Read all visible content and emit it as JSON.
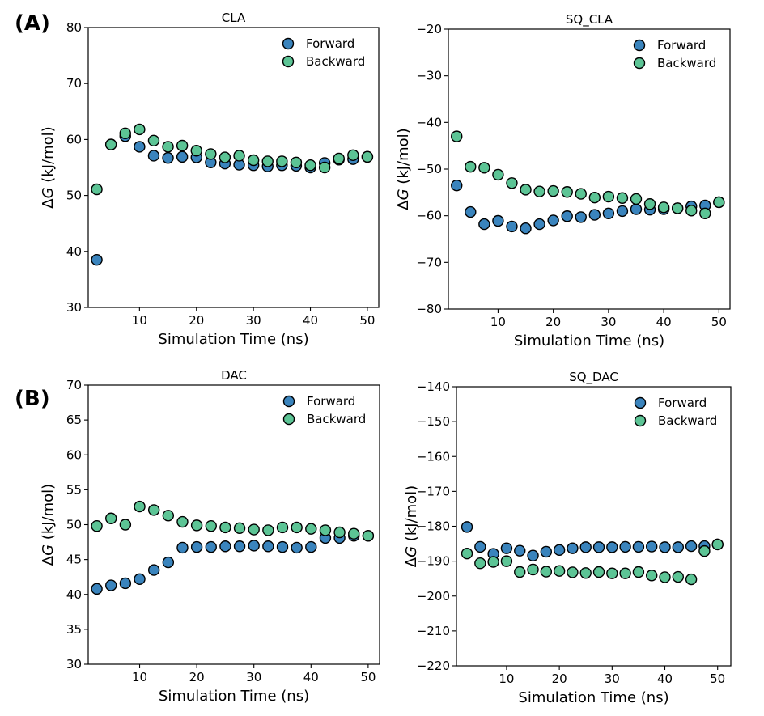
{
  "panel_labels": [
    "(A)",
    "(B)"
  ],
  "colors": {
    "forward": "#3a84bd",
    "backward": "#5cc495",
    "edge": "#000000"
  },
  "chart_data": [
    {
      "type": "scatter",
      "title": "CLA",
      "xlabel": "Simulation Time (ns)",
      "ylabel_prefix": "Δ",
      "ylabel_var": "G",
      "ylabel_suffix": " (kJ/mol)",
      "xlim": [
        1.0,
        52.0
      ],
      "ylim": [
        30,
        80
      ],
      "xticks": [
        10,
        20,
        30,
        40,
        50
      ],
      "yticks": [
        30,
        40,
        50,
        60,
        70,
        80
      ],
      "legend": [
        "Forward",
        "Backward"
      ],
      "series": [
        {
          "name": "Forward",
          "x": [
            2.5,
            5,
            7.5,
            10,
            12.5,
            15,
            17.5,
            20,
            22.5,
            25,
            27.5,
            30,
            32.5,
            35,
            37.5,
            40,
            42.5,
            45,
            47.5,
            50
          ],
          "y": [
            38.5,
            59.1,
            60.6,
            58.7,
            57.1,
            56.7,
            56.9,
            56.8,
            55.9,
            55.7,
            55.5,
            55.4,
            55.2,
            55.4,
            55.3,
            55.0,
            55.8,
            56.4,
            56.5,
            56.9
          ]
        },
        {
          "name": "Backward",
          "x": [
            2.5,
            5,
            7.5,
            10,
            12.5,
            15,
            17.5,
            20,
            22.5,
            25,
            27.5,
            30,
            32.5,
            35,
            37.5,
            40,
            42.5,
            45,
            47.5,
            50
          ],
          "y": [
            51.1,
            59.1,
            61.1,
            61.8,
            59.8,
            58.7,
            58.9,
            58.0,
            57.4,
            56.8,
            57.1,
            56.3,
            56.1,
            56.1,
            55.9,
            55.4,
            55.0,
            56.6,
            57.2,
            56.9
          ]
        }
      ]
    },
    {
      "type": "scatter",
      "title": "SQ_CLA",
      "xlabel": "Simulation Time (ns)",
      "ylabel_prefix": "Δ",
      "ylabel_var": "G",
      "ylabel_suffix": " (kJ/mol)",
      "xlim": [
        1.0,
        52.0
      ],
      "ylim": [
        -80,
        -20
      ],
      "xticks": [
        10,
        20,
        30,
        40,
        50
      ],
      "yticks": [
        -80,
        -70,
        -60,
        -50,
        -40,
        -30,
        -20
      ],
      "legend": [
        "Forward",
        "Backward"
      ],
      "series": [
        {
          "name": "Forward",
          "x": [
            2.5,
            5,
            7.5,
            10,
            12.5,
            15,
            17.5,
            20,
            22.5,
            25,
            27.5,
            30,
            32.5,
            35,
            37.5,
            40,
            42.5,
            45,
            47.5,
            50
          ],
          "y": [
            -53.5,
            -59.2,
            -61.8,
            -61.1,
            -62.3,
            -62.7,
            -61.8,
            -61.0,
            -60.1,
            -60.3,
            -59.8,
            -59.5,
            -59.0,
            -58.6,
            -58.7,
            -58.6,
            -58.4,
            -58.0,
            -57.8,
            -57.1
          ]
        },
        {
          "name": "Backward",
          "x": [
            2.5,
            5,
            7.5,
            10,
            12.5,
            15,
            17.5,
            20,
            22.5,
            25,
            27.5,
            30,
            32.5,
            35,
            37.5,
            40,
            42.5,
            45,
            47.5,
            50
          ],
          "y": [
            -43.0,
            -49.5,
            -49.7,
            -51.2,
            -53.0,
            -54.4,
            -54.8,
            -54.7,
            -54.9,
            -55.3,
            -56.1,
            -55.9,
            -56.2,
            -56.4,
            -57.5,
            -58.2,
            -58.4,
            -58.9,
            -59.5,
            -57.1
          ]
        }
      ]
    },
    {
      "type": "scatter",
      "title": "DAC",
      "xlabel": "Simulation Time (ns)",
      "ylabel_prefix": "Δ",
      "ylabel_var": "G",
      "ylabel_suffix": " (kJ/mol)",
      "xlim": [
        1.0,
        52.0
      ],
      "ylim": [
        30,
        70
      ],
      "xticks": [
        10,
        20,
        30,
        40,
        50
      ],
      "yticks": [
        30,
        35,
        40,
        45,
        50,
        55,
        60,
        65,
        70
      ],
      "legend": [
        "Forward",
        "Backward"
      ],
      "series": [
        {
          "name": "Forward",
          "x": [
            2.5,
            5,
            7.5,
            10,
            12.5,
            15,
            17.5,
            20,
            22.5,
            25,
            27.5,
            30,
            32.5,
            35,
            37.5,
            40,
            42.5,
            45,
            47.5,
            50
          ],
          "y": [
            40.8,
            41.3,
            41.6,
            42.2,
            43.5,
            44.6,
            46.7,
            46.8,
            46.8,
            46.9,
            46.9,
            47.0,
            46.9,
            46.8,
            46.7,
            46.8,
            48.1,
            48.1,
            48.4,
            48.4
          ]
        },
        {
          "name": "Backward",
          "x": [
            2.5,
            5,
            7.5,
            10,
            12.5,
            15,
            17.5,
            20,
            22.5,
            25,
            27.5,
            30,
            32.5,
            35,
            37.5,
            40,
            42.5,
            45,
            47.5,
            50
          ],
          "y": [
            49.8,
            50.9,
            50.0,
            52.6,
            52.1,
            51.3,
            50.4,
            49.9,
            49.8,
            49.6,
            49.5,
            49.3,
            49.2,
            49.6,
            49.6,
            49.4,
            49.2,
            48.9,
            48.7,
            48.4
          ]
        }
      ]
    },
    {
      "type": "scatter",
      "title": "SQ_DAC",
      "xlabel": "Simulation Time (ns)",
      "ylabel_prefix": "Δ",
      "ylabel_var": "G",
      "ylabel_suffix": " (kJ/mol)",
      "xlim": [
        0.5,
        52.5
      ],
      "ylim": [
        -220,
        -140
      ],
      "xticks": [
        10,
        20,
        30,
        40,
        50
      ],
      "yticks": [
        -220,
        -210,
        -200,
        -190,
        -180,
        -170,
        -160,
        -150,
        -140
      ],
      "legend": [
        "Forward",
        "Backward"
      ],
      "series": [
        {
          "name": "Forward",
          "x": [
            2.5,
            5,
            7.5,
            10,
            12.5,
            15,
            17.5,
            20,
            22.5,
            25,
            27.5,
            30,
            32.5,
            35,
            37.5,
            40,
            42.5,
            45,
            47.5,
            50
          ],
          "y": [
            -180.2,
            -185.9,
            -187.9,
            -186.3,
            -187.0,
            -188.4,
            -187.3,
            -186.8,
            -186.3,
            -186.0,
            -186.0,
            -186.0,
            -185.9,
            -185.9,
            -185.8,
            -186.0,
            -186.0,
            -185.7,
            -185.7,
            -185.2
          ]
        },
        {
          "name": "Backward",
          "x": [
            2.5,
            5,
            7.5,
            10,
            12.5,
            15,
            17.5,
            20,
            22.5,
            25,
            27.5,
            30,
            32.5,
            35,
            37.5,
            40,
            42.5,
            45,
            47.5,
            50
          ],
          "y": [
            -187.8,
            -190.6,
            -190.2,
            -190.0,
            -193.1,
            -192.4,
            -193.0,
            -192.8,
            -193.2,
            -193.4,
            -193.1,
            -193.5,
            -193.5,
            -193.1,
            -194.1,
            -194.6,
            -194.5,
            -195.2,
            -187.1,
            -185.2
          ]
        }
      ]
    }
  ]
}
